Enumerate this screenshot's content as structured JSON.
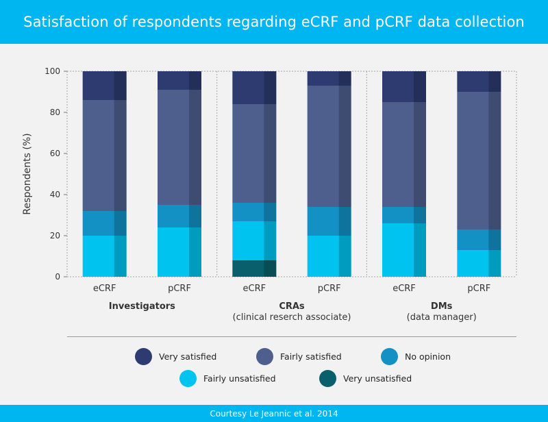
{
  "title": "Satisfaction of respondents regarding eCRF and pCRF data collection",
  "footer": "Courtesy Le Jeannic et al. 2014",
  "colors": {
    "very_satisfied": "#2e3b70",
    "fairly_satisfied": "#4e5f8e",
    "no_opinion": "#1391c5",
    "fairly_unsatisfied": "#00c3ef",
    "very_unsatisfied": "#0a5f6c",
    "header": "#00b6f0"
  },
  "legend": [
    {
      "key": "very_satisfied",
      "label": "Very satisfied"
    },
    {
      "key": "fairly_satisfied",
      "label": "Fairly satisfied"
    },
    {
      "key": "no_opinion",
      "label": "No opinion"
    },
    {
      "key": "fairly_unsatisfied",
      "label": "Fairly unsatisfied"
    },
    {
      "key": "very_unsatisfied",
      "label": "Very unsatisfied"
    }
  ],
  "chart_data": {
    "type": "bar",
    "stacked": true,
    "ylabel": "Respondents (%)",
    "ylim": [
      0,
      100
    ],
    "yticks": [
      0,
      20,
      40,
      60,
      80,
      100
    ],
    "grid": "dotted vertical group separators",
    "legend_position": "bottom",
    "groups": [
      {
        "label": "Investigators",
        "categories": [
          "eCRF",
          "pCRF"
        ]
      },
      {
        "label": "CRAs\n(clinical reserch associate)",
        "categories": [
          "eCRF",
          "pCRF"
        ]
      },
      {
        "label": "DMs\n(data manager)",
        "categories": [
          "eCRF",
          "pCRF"
        ]
      }
    ],
    "categories": [
      "eCRF",
      "pCRF",
      "eCRF",
      "pCRF",
      "eCRF",
      "pCRF"
    ],
    "series": [
      {
        "name": "Very unsatisfied",
        "key": "very_unsatisfied",
        "values": [
          0,
          0,
          8,
          0,
          0,
          0
        ]
      },
      {
        "name": "Fairly unsatisfied",
        "key": "fairly_unsatisfied",
        "values": [
          20,
          24,
          19,
          20,
          26,
          13
        ]
      },
      {
        "name": "No opinion",
        "key": "no_opinion",
        "values": [
          12,
          11,
          9,
          14,
          8,
          10
        ]
      },
      {
        "name": "Fairly satisfied",
        "key": "fairly_satisfied",
        "values": [
          54,
          56,
          48,
          59,
          51,
          67
        ]
      },
      {
        "name": "Very satisfied",
        "key": "very_satisfied",
        "values": [
          14,
          9,
          16,
          7,
          15,
          10
        ]
      }
    ]
  }
}
